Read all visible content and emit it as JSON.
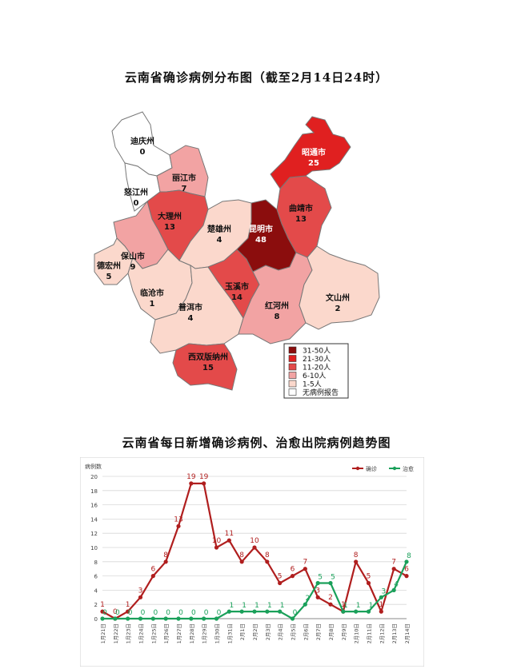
{
  "map": {
    "title": "云南省确诊病例分布图（截至2月14日24时）",
    "regions": [
      {
        "name": "迪庆州",
        "count": "0",
        "fill": "#ffffff"
      },
      {
        "name": "怒江州",
        "count": "0",
        "fill": "#ffffff"
      },
      {
        "name": "丽江市",
        "count": "7",
        "fill": "#f2a3a3"
      },
      {
        "name": "大理州",
        "count": "13",
        "fill": "#e34a4a"
      },
      {
        "name": "保山市",
        "count": "9",
        "fill": "#f2a3a3"
      },
      {
        "name": "德宏州",
        "count": "5",
        "fill": "#fbd8cc"
      },
      {
        "name": "临沧市",
        "count": "1",
        "fill": "#fbd8cc"
      },
      {
        "name": "楚雄州",
        "count": "4",
        "fill": "#fbd8cc"
      },
      {
        "name": "普洱市",
        "count": "4",
        "fill": "#fbd8cc"
      },
      {
        "name": "西双版纳州",
        "count": "15",
        "fill": "#e34a4a"
      },
      {
        "name": "玉溪市",
        "count": "14",
        "fill": "#e34a4a"
      },
      {
        "name": "昆明市",
        "count": "48",
        "fill": "#8b0d0d"
      },
      {
        "name": "曲靖市",
        "count": "13",
        "fill": "#e34a4a"
      },
      {
        "name": "昭通市",
        "count": "25",
        "fill": "#e02020"
      },
      {
        "name": "红河州",
        "count": "8",
        "fill": "#f2a3a3"
      },
      {
        "name": "文山州",
        "count": "2",
        "fill": "#fbd8cc"
      }
    ],
    "legend": [
      {
        "label": "31-50人",
        "color": "#8b0d0d"
      },
      {
        "label": "21-30人",
        "color": "#e02020"
      },
      {
        "label": "11-20人",
        "color": "#e34a4a"
      },
      {
        "label": "6-10人",
        "color": "#f2a3a3"
      },
      {
        "label": "1-5人",
        "color": "#fbd8cc"
      },
      {
        "label": "无病例报告",
        "color": "#ffffff"
      }
    ]
  },
  "chart_data": {
    "type": "line",
    "title": "云南省每日新增确诊病例、治愈出院病例趋势图",
    "ylabel": "病例数",
    "xlabel": "",
    "ylim": [
      0,
      20
    ],
    "yticks": [
      0,
      2,
      4,
      6,
      8,
      10,
      12,
      14,
      16,
      18,
      20
    ],
    "categories": [
      "1月21日",
      "1月22日",
      "1月23日",
      "1月24日",
      "1月25日",
      "1月26日",
      "1月27日",
      "1月28日",
      "1月29日",
      "1月30日",
      "1月31日",
      "2月1日",
      "2月2日",
      "2月3日",
      "2月4日",
      "2月5日",
      "2月6日",
      "2月7日",
      "2月8日",
      "2月9日",
      "2月10日",
      "2月11日",
      "2月12日",
      "2月13日",
      "2月14日"
    ],
    "legend_position": "top-right",
    "grid": true,
    "series": [
      {
        "name": "确诊",
        "color": "#b01e1e",
        "values": [
          1,
          0,
          1,
          3,
          6,
          8,
          13,
          19,
          19,
          10,
          11,
          8,
          10,
          8,
          5,
          6,
          7,
          3,
          2,
          1,
          8,
          5,
          1,
          7,
          6
        ]
      },
      {
        "name": "治愈",
        "color": "#1aa05a",
        "values": [
          0,
          0,
          0,
          0,
          0,
          0,
          0,
          0,
          0,
          0,
          1,
          1,
          1,
          1,
          1,
          0,
          2,
          5,
          5,
          1,
          1,
          1,
          3,
          4,
          8
        ]
      }
    ]
  }
}
